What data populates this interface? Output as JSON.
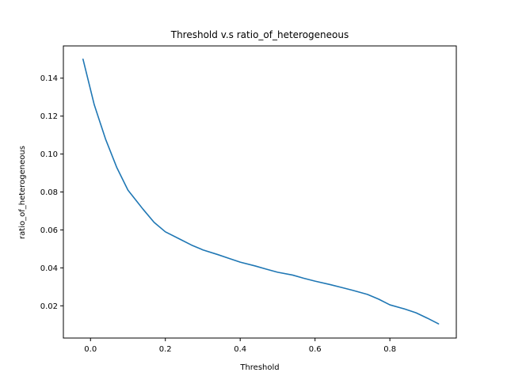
{
  "chart_data": {
    "type": "line",
    "title": "Threshold v.s ratio_of_heterogeneous",
    "xlabel": "Threshold",
    "ylabel": "ratio_of_heterogeneous",
    "xlim": [
      -0.0725,
      0.9775
    ],
    "ylim": [
      0.003,
      0.157
    ],
    "xticks": [
      {
        "value": 0.0,
        "label": "0.0"
      },
      {
        "value": 0.2,
        "label": "0.2"
      },
      {
        "value": 0.4,
        "label": "0.4"
      },
      {
        "value": 0.6,
        "label": "0.6"
      },
      {
        "value": 0.8,
        "label": "0.8"
      }
    ],
    "yticks": [
      {
        "value": 0.02,
        "label": "0.02"
      },
      {
        "value": 0.04,
        "label": "0.04"
      },
      {
        "value": 0.06,
        "label": "0.06"
      },
      {
        "value": 0.08,
        "label": "0.08"
      },
      {
        "value": 0.1,
        "label": "0.10"
      },
      {
        "value": 0.12,
        "label": "0.12"
      },
      {
        "value": 0.14,
        "label": "0.14"
      }
    ],
    "grid": false,
    "color": "#1f77b4",
    "series": [
      {
        "x": [
          -0.02,
          0.01,
          0.04,
          0.07,
          0.1,
          0.14,
          0.17,
          0.2,
          0.24,
          0.27,
          0.3,
          0.34,
          0.37,
          0.4,
          0.44,
          0.47,
          0.5,
          0.54,
          0.57,
          0.6,
          0.64,
          0.67,
          0.7,
          0.74,
          0.77,
          0.8,
          0.84,
          0.87,
          0.9,
          0.93
        ],
        "y": [
          0.15,
          0.126,
          0.108,
          0.093,
          0.081,
          0.071,
          0.064,
          0.059,
          0.055,
          0.052,
          0.0495,
          0.047,
          0.045,
          0.043,
          0.041,
          0.0393,
          0.0377,
          0.0362,
          0.0345,
          0.033,
          0.0312,
          0.0297,
          0.0282,
          0.026,
          0.0235,
          0.0205,
          0.0183,
          0.0163,
          0.0135,
          0.0105
        ]
      }
    ]
  }
}
